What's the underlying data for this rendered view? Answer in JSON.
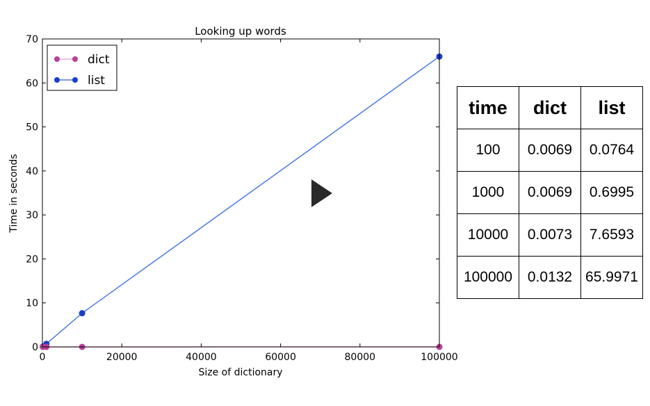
{
  "chart_data": {
    "type": "line",
    "title": "Looking up words",
    "xlabel": "Size of dictionary",
    "ylabel": "Time in seconds",
    "xlim": [
      0,
      100000
    ],
    "ylim": [
      0,
      70
    ],
    "x_ticks": [
      "0",
      "20000",
      "40000",
      "60000",
      "80000",
      "100000"
    ],
    "y_ticks": [
      "0",
      "10",
      "20",
      "30",
      "40",
      "50",
      "60",
      "70"
    ],
    "grid": false,
    "legend_position": "top-left",
    "x": [
      100,
      1000,
      10000,
      100000
    ],
    "series": [
      {
        "name": "dict",
        "values": [
          0.0069,
          0.0069,
          0.0073,
          0.0132
        ],
        "color": "#b8409a",
        "line_color": "#f0a8dc"
      },
      {
        "name": "list",
        "values": [
          0.0764,
          0.6995,
          7.6593,
          65.9971
        ],
        "color": "#1c3cc8",
        "line_color": "#4a7be0"
      }
    ]
  },
  "table": {
    "headers": [
      "time",
      "dict",
      "list"
    ],
    "rows": [
      [
        "100",
        "0.0069",
        "0.0764"
      ],
      [
        "1000",
        "0.0069",
        "0.6995"
      ],
      [
        "10000",
        "0.0073",
        "7.6593"
      ],
      [
        "100000",
        "0.0132",
        "65.9971"
      ]
    ]
  },
  "player": {
    "play_icon": "play-icon"
  }
}
